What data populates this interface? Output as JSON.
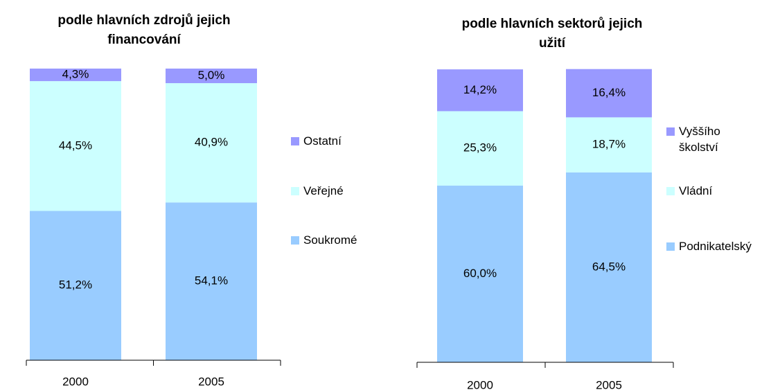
{
  "chart_data": [
    {
      "type": "bar",
      "stacked": true,
      "title": "podle hlavních zdrojů jejich financování",
      "categories": [
        "2000",
        "2005"
      ],
      "ylim": [
        0,
        100
      ],
      "series": [
        {
          "name": "Soukromé",
          "color": "#99ccff",
          "values": [
            51.2,
            54.1
          ],
          "value_labels": [
            "51,2%",
            "54,1%"
          ]
        },
        {
          "name": "Veřejné",
          "color": "#ccffff",
          "values": [
            44.5,
            40.9
          ],
          "value_labels": [
            "44,5%",
            "40,9%"
          ]
        },
        {
          "name": "Ostatní",
          "color": "#9999ff",
          "values": [
            4.3,
            5.0
          ],
          "value_labels": [
            "4,3%",
            "5,0%"
          ]
        }
      ]
    },
    {
      "type": "bar",
      "stacked": true,
      "title": "podle hlavních sektorů jejich užití",
      "categories": [
        "2000",
        "2005"
      ],
      "ylim": [
        0,
        100
      ],
      "series": [
        {
          "name": "Podnikatelský",
          "color": "#99ccff",
          "values": [
            60.0,
            64.5
          ],
          "value_labels": [
            "60,0%",
            "64,5%"
          ]
        },
        {
          "name": "Vládní",
          "color": "#ccffff",
          "values": [
            25.3,
            18.7
          ],
          "value_labels": [
            "25,3%",
            "18,7%"
          ]
        },
        {
          "name": "Vyššího školství",
          "color": "#9999ff",
          "values": [
            14.2,
            16.4
          ],
          "value_labels": [
            "14,2%",
            "16,4%"
          ]
        }
      ]
    }
  ]
}
